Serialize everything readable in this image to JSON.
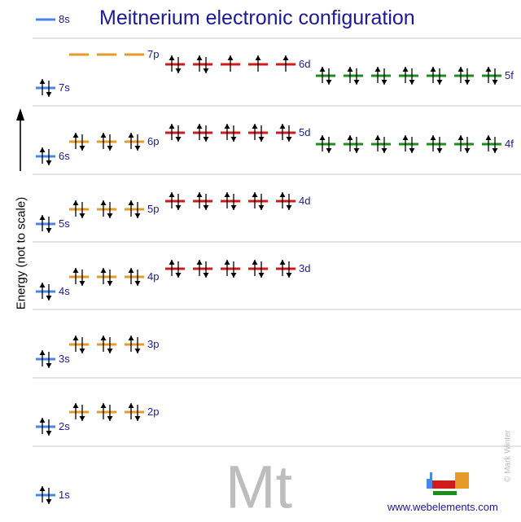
{
  "title": "Meitnerium electronic configuration",
  "y_axis_label": "Energy (not to scale)",
  "element_symbol": "Mt",
  "website": "www.webelements.com",
  "copyright": "© Mark Winter",
  "colors": {
    "s": "#4a86e8",
    "p": "#e69a28",
    "d": "#d11a1a",
    "f": "#199119",
    "text": "#1a1a99",
    "separator": "#c8c8c8"
  },
  "chart_data": {
    "type": "energy-level-diagram",
    "arrow_icon": "energy-up-arrow-icon",
    "orbitals": [
      {
        "label": "1s",
        "type": "s",
        "row": 0,
        "electrons": [
          2
        ]
      },
      {
        "label": "2s",
        "type": "s",
        "row": 1,
        "electrons": [
          2
        ]
      },
      {
        "label": "2p",
        "type": "p",
        "row": 1,
        "electrons": [
          2,
          2,
          2
        ]
      },
      {
        "label": "3s",
        "type": "s",
        "row": 2,
        "electrons": [
          2
        ]
      },
      {
        "label": "3p",
        "type": "p",
        "row": 2,
        "electrons": [
          2,
          2,
          2
        ]
      },
      {
        "label": "4s",
        "type": "s",
        "row": 3,
        "electrons": [
          2
        ]
      },
      {
        "label": "4p",
        "type": "p",
        "row": 3,
        "electrons": [
          2,
          2,
          2
        ]
      },
      {
        "label": "3d",
        "type": "d",
        "row": 3,
        "electrons": [
          2,
          2,
          2,
          2,
          2
        ]
      },
      {
        "label": "5s",
        "type": "s",
        "row": 4,
        "electrons": [
          2
        ]
      },
      {
        "label": "5p",
        "type": "p",
        "row": 4,
        "electrons": [
          2,
          2,
          2
        ]
      },
      {
        "label": "4d",
        "type": "d",
        "row": 4,
        "electrons": [
          2,
          2,
          2,
          2,
          2
        ]
      },
      {
        "label": "6s",
        "type": "s",
        "row": 5,
        "electrons": [
          2
        ]
      },
      {
        "label": "6p",
        "type": "p",
        "row": 5,
        "electrons": [
          2,
          2,
          2
        ]
      },
      {
        "label": "5d",
        "type": "d",
        "row": 5,
        "electrons": [
          2,
          2,
          2,
          2,
          2
        ]
      },
      {
        "label": "4f",
        "type": "f",
        "row": 5,
        "electrons": [
          2,
          2,
          2,
          2,
          2,
          2,
          2
        ]
      },
      {
        "label": "7s",
        "type": "s",
        "row": 6,
        "electrons": [
          2
        ]
      },
      {
        "label": "7p",
        "type": "p",
        "row": 6,
        "electrons": [
          0,
          0,
          0
        ]
      },
      {
        "label": "6d",
        "type": "d",
        "row": 6,
        "electrons": [
          2,
          2,
          1,
          1,
          1
        ]
      },
      {
        "label": "5f",
        "type": "f",
        "row": 6,
        "electrons": [
          2,
          2,
          2,
          2,
          2,
          2,
          2
        ]
      },
      {
        "label": "8s",
        "type": "s",
        "row": 7,
        "electrons": [
          0
        ]
      }
    ]
  }
}
